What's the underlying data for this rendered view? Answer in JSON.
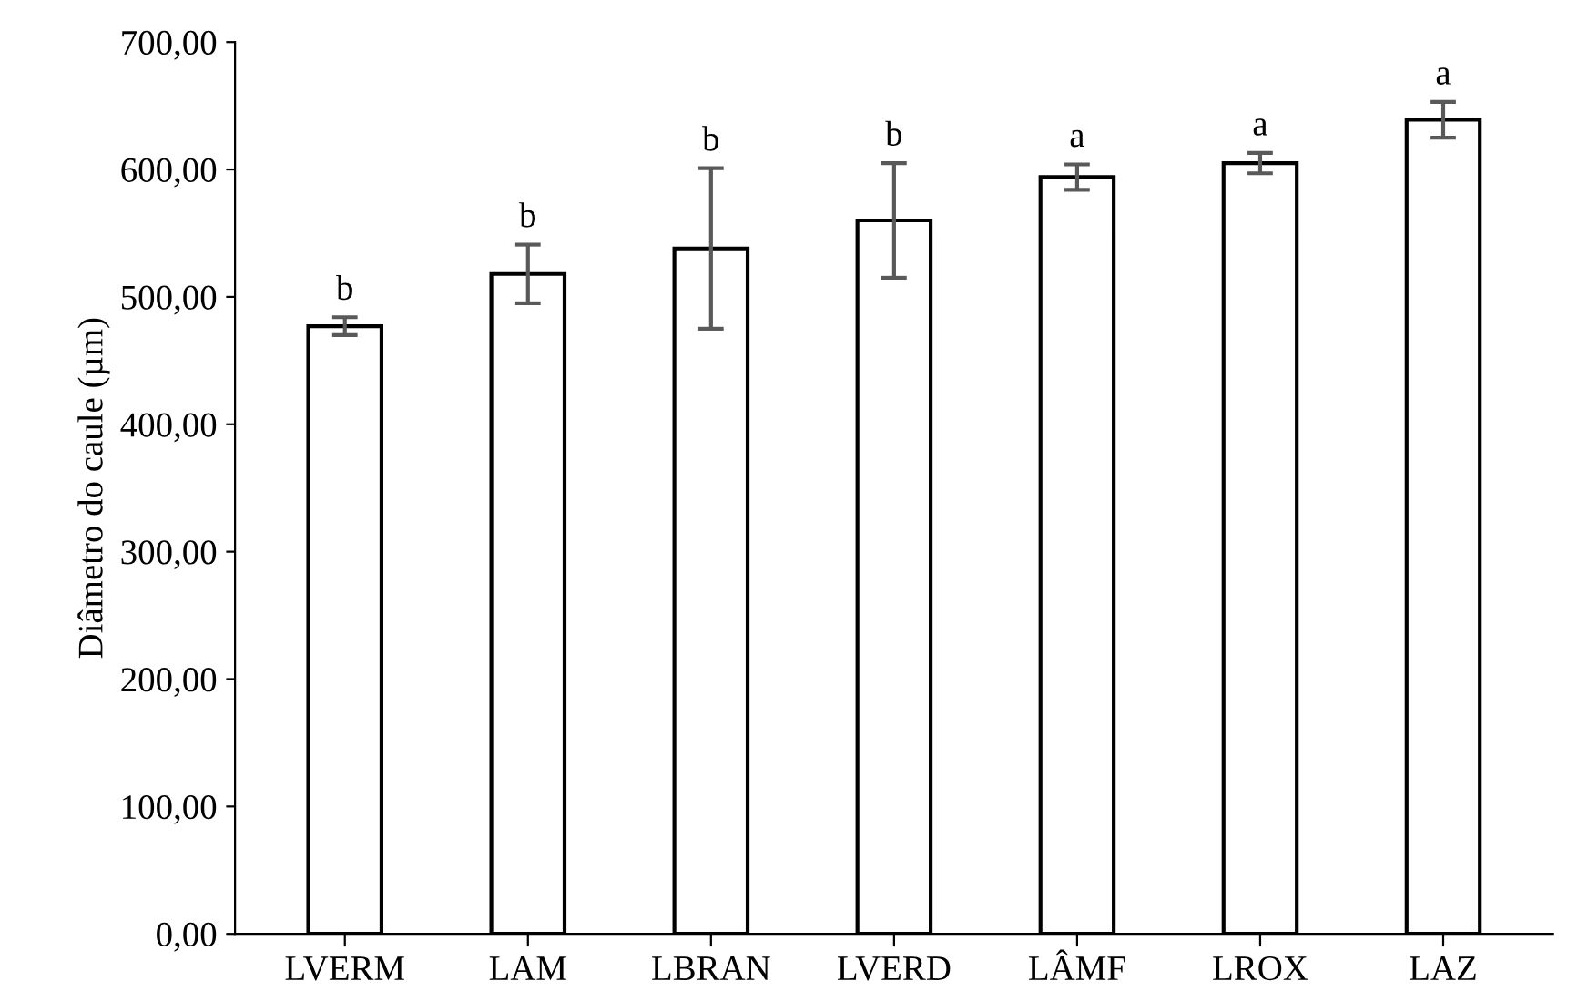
{
  "chart_data": {
    "type": "bar",
    "ylabel": "Diâmetro do caule (µm)",
    "categories": [
      "LVERM",
      "LAM",
      "LBRAN",
      "LVERD",
      "LÂMF",
      "LROX",
      "LAZ"
    ],
    "values": [
      477,
      518,
      538,
      560,
      594,
      605,
      639
    ],
    "errors": [
      7,
      23,
      63,
      45,
      10,
      8,
      14
    ],
    "color": "#ffffff",
    "ylim": [
      0,
      700
    ],
    "yticks": [
      {
        "value": 0,
        "label": "0,00"
      },
      {
        "value": 100,
        "label": "100,00"
      },
      {
        "value": 200,
        "label": "200,00"
      },
      {
        "value": 300,
        "label": "300,00"
      },
      {
        "value": 400,
        "label": "400,00"
      },
      {
        "value": 500,
        "label": "500,00"
      },
      {
        "value": 600,
        "label": "600,00"
      },
      {
        "value": 700,
        "label": "700,00"
      }
    ],
    "grid": false,
    "annotations": [
      {
        "text": "b",
        "x": "LVERM",
        "y": 484
      },
      {
        "text": "b",
        "x": "LAM",
        "y": 541
      },
      {
        "text": "b",
        "x": "LBRAN",
        "y": 601
      },
      {
        "text": "b",
        "x": "LVERD",
        "y": 605
      },
      {
        "text": "a",
        "x": "LÂMF",
        "y": 604
      },
      {
        "text": "a",
        "x": "LROX",
        "y": 613
      },
      {
        "text": "a",
        "x": "LAZ",
        "y": 653
      }
    ]
  }
}
